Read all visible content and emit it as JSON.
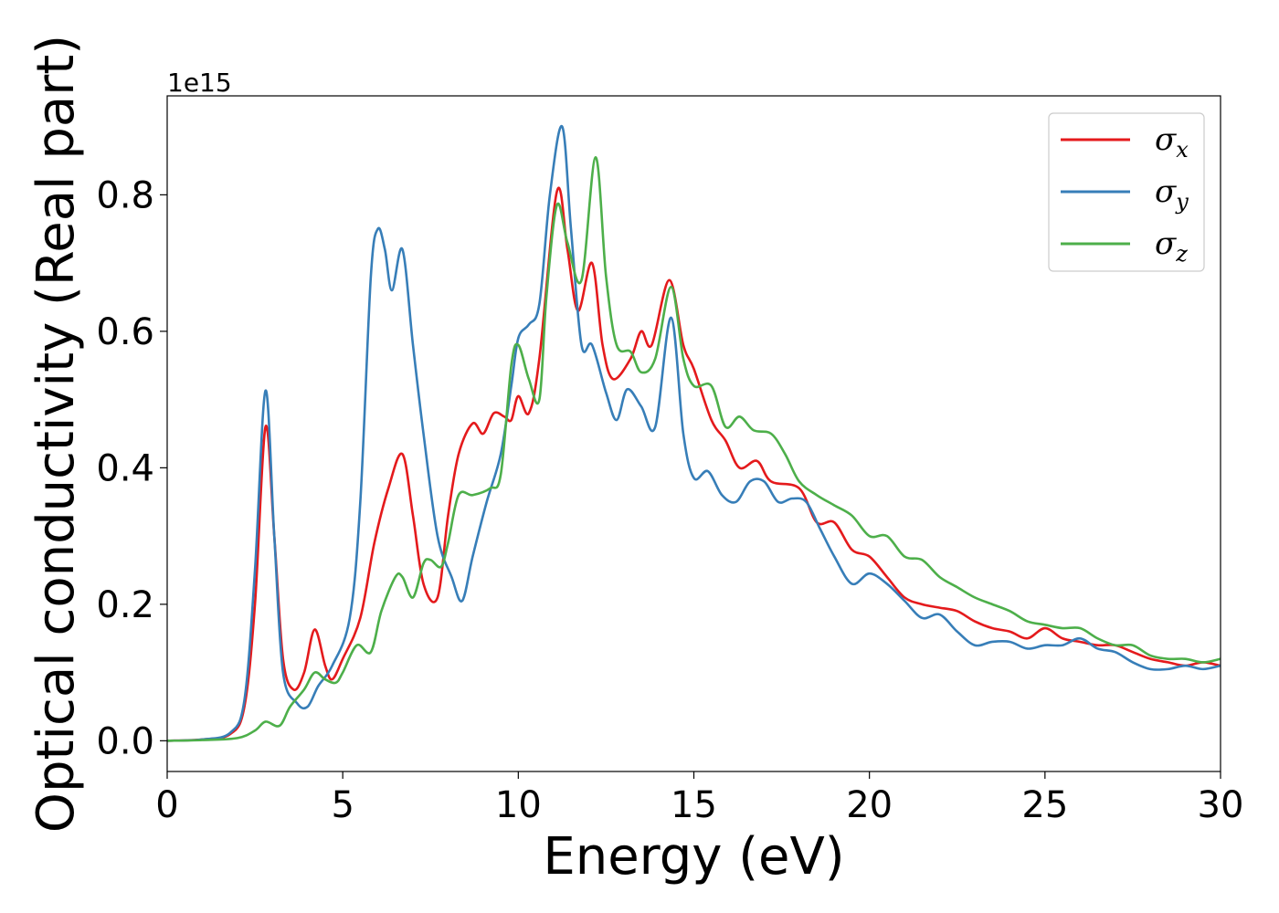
{
  "chart_data": {
    "type": "line",
    "title": "",
    "xlabel": "Energy (eV)",
    "ylabel": "Optical conductivity (Real part)",
    "y_offset_label": "1e15",
    "xlim": [
      0,
      30
    ],
    "ylim": [
      -0.045,
      0.945
    ],
    "xticks": [
      0,
      5,
      10,
      15,
      20,
      25,
      30
    ],
    "yticks": [
      0.0,
      0.2,
      0.4,
      0.6,
      0.8
    ],
    "xtick_labels": [
      "0",
      "5",
      "10",
      "15",
      "20",
      "25",
      "30"
    ],
    "ytick_labels": [
      "0.0",
      "0.2",
      "0.4",
      "0.6",
      "0.8"
    ],
    "grid": false,
    "legend": {
      "position": "top-right"
    },
    "series": [
      {
        "name": "σx",
        "symbol": "σ",
        "sub": "x",
        "color": "#e41a1c",
        "points": [
          [
            0,
            0
          ],
          [
            1,
            0.002
          ],
          [
            1.8,
            0.01
          ],
          [
            2.2,
            0.05
          ],
          [
            2.5,
            0.2
          ],
          [
            2.8,
            0.46
          ],
          [
            3.05,
            0.3
          ],
          [
            3.3,
            0.12
          ],
          [
            3.6,
            0.075
          ],
          [
            3.9,
            0.1
          ],
          [
            4.2,
            0.163
          ],
          [
            4.5,
            0.11
          ],
          [
            4.7,
            0.09
          ],
          [
            5.0,
            0.12
          ],
          [
            5.5,
            0.18
          ],
          [
            5.9,
            0.29
          ],
          [
            6.3,
            0.37
          ],
          [
            6.7,
            0.42
          ],
          [
            7.0,
            0.33
          ],
          [
            7.3,
            0.23
          ],
          [
            7.7,
            0.21
          ],
          [
            8.0,
            0.33
          ],
          [
            8.3,
            0.42
          ],
          [
            8.7,
            0.465
          ],
          [
            9.0,
            0.45
          ],
          [
            9.3,
            0.48
          ],
          [
            9.6,
            0.475
          ],
          [
            9.8,
            0.47
          ],
          [
            10.0,
            0.505
          ],
          [
            10.3,
            0.48
          ],
          [
            10.6,
            0.56
          ],
          [
            11.1,
            0.805
          ],
          [
            11.4,
            0.72
          ],
          [
            11.7,
            0.63
          ],
          [
            12.1,
            0.7
          ],
          [
            12.4,
            0.58
          ],
          [
            12.7,
            0.53
          ],
          [
            13.2,
            0.56
          ],
          [
            13.5,
            0.6
          ],
          [
            13.8,
            0.58
          ],
          [
            14.3,
            0.675
          ],
          [
            14.7,
            0.58
          ],
          [
            15.0,
            0.545
          ],
          [
            15.5,
            0.47
          ],
          [
            15.9,
            0.44
          ],
          [
            16.3,
            0.4
          ],
          [
            16.8,
            0.41
          ],
          [
            17.2,
            0.38
          ],
          [
            18.0,
            0.37
          ],
          [
            18.5,
            0.32
          ],
          [
            19.0,
            0.32
          ],
          [
            19.5,
            0.28
          ],
          [
            20.0,
            0.27
          ],
          [
            20.5,
            0.24
          ],
          [
            21.0,
            0.21
          ],
          [
            21.5,
            0.2
          ],
          [
            22.0,
            0.195
          ],
          [
            22.5,
            0.19
          ],
          [
            23.0,
            0.175
          ],
          [
            23.5,
            0.165
          ],
          [
            24.0,
            0.16
          ],
          [
            24.5,
            0.15
          ],
          [
            25.0,
            0.165
          ],
          [
            25.5,
            0.15
          ],
          [
            26.0,
            0.145
          ],
          [
            26.5,
            0.14
          ],
          [
            27.0,
            0.14
          ],
          [
            27.5,
            0.13
          ],
          [
            28.0,
            0.12
          ],
          [
            28.5,
            0.115
          ],
          [
            29.0,
            0.11
          ],
          [
            29.5,
            0.115
          ],
          [
            30.0,
            0.11
          ]
        ]
      },
      {
        "name": "σy",
        "symbol": "σ",
        "sub": "y",
        "color": "#377eb8",
        "points": [
          [
            0,
            0
          ],
          [
            1,
            0.002
          ],
          [
            1.8,
            0.012
          ],
          [
            2.2,
            0.06
          ],
          [
            2.5,
            0.25
          ],
          [
            2.8,
            0.513
          ],
          [
            3.05,
            0.3
          ],
          [
            3.3,
            0.1
          ],
          [
            3.7,
            0.055
          ],
          [
            4.0,
            0.05
          ],
          [
            4.3,
            0.08
          ],
          [
            4.7,
            0.11
          ],
          [
            5.2,
            0.18
          ],
          [
            5.5,
            0.35
          ],
          [
            5.8,
            0.68
          ],
          [
            6.0,
            0.75
          ],
          [
            6.2,
            0.72
          ],
          [
            6.4,
            0.66
          ],
          [
            6.7,
            0.72
          ],
          [
            7.0,
            0.58
          ],
          [
            7.3,
            0.45
          ],
          [
            7.7,
            0.3
          ],
          [
            8.1,
            0.24
          ],
          [
            8.4,
            0.205
          ],
          [
            8.7,
            0.27
          ],
          [
            9.1,
            0.35
          ],
          [
            9.5,
            0.42
          ],
          [
            9.8,
            0.52
          ],
          [
            10.0,
            0.59
          ],
          [
            10.3,
            0.61
          ],
          [
            10.6,
            0.64
          ],
          [
            10.9,
            0.8
          ],
          [
            11.25,
            0.9
          ],
          [
            11.5,
            0.75
          ],
          [
            11.8,
            0.58
          ],
          [
            12.1,
            0.58
          ],
          [
            12.5,
            0.51
          ],
          [
            12.8,
            0.47
          ],
          [
            13.1,
            0.515
          ],
          [
            13.5,
            0.49
          ],
          [
            13.9,
            0.46
          ],
          [
            14.35,
            0.62
          ],
          [
            14.7,
            0.45
          ],
          [
            15.0,
            0.385
          ],
          [
            15.4,
            0.395
          ],
          [
            15.8,
            0.36
          ],
          [
            16.2,
            0.35
          ],
          [
            16.6,
            0.38
          ],
          [
            17.0,
            0.38
          ],
          [
            17.4,
            0.35
          ],
          [
            17.8,
            0.355
          ],
          [
            18.2,
            0.35
          ],
          [
            18.6,
            0.31
          ],
          [
            19.0,
            0.27
          ],
          [
            19.5,
            0.23
          ],
          [
            20.0,
            0.245
          ],
          [
            20.5,
            0.23
          ],
          [
            21.0,
            0.205
          ],
          [
            21.5,
            0.18
          ],
          [
            22.0,
            0.185
          ],
          [
            22.5,
            0.16
          ],
          [
            23.0,
            0.14
          ],
          [
            23.5,
            0.145
          ],
          [
            24.0,
            0.145
          ],
          [
            24.5,
            0.135
          ],
          [
            25.0,
            0.14
          ],
          [
            25.5,
            0.14
          ],
          [
            26.0,
            0.15
          ],
          [
            26.5,
            0.135
          ],
          [
            27.0,
            0.13
          ],
          [
            27.5,
            0.115
          ],
          [
            28.0,
            0.105
          ],
          [
            28.5,
            0.105
          ],
          [
            29.0,
            0.11
          ],
          [
            29.5,
            0.105
          ],
          [
            30.0,
            0.11
          ]
        ]
      },
      {
        "name": "σz",
        "symbol": "σ",
        "sub": "z",
        "color": "#4daf4a",
        "points": [
          [
            0,
            0
          ],
          [
            1,
            0.001
          ],
          [
            2.0,
            0.004
          ],
          [
            2.5,
            0.015
          ],
          [
            2.8,
            0.028
          ],
          [
            3.2,
            0.022
          ],
          [
            3.5,
            0.05
          ],
          [
            3.9,
            0.075
          ],
          [
            4.2,
            0.1
          ],
          [
            4.5,
            0.09
          ],
          [
            4.8,
            0.085
          ],
          [
            5.0,
            0.1
          ],
          [
            5.4,
            0.14
          ],
          [
            5.8,
            0.13
          ],
          [
            6.1,
            0.19
          ],
          [
            6.5,
            0.24
          ],
          [
            6.7,
            0.24
          ],
          [
            7.0,
            0.21
          ],
          [
            7.3,
            0.26
          ],
          [
            7.5,
            0.265
          ],
          [
            7.8,
            0.255
          ],
          [
            8.0,
            0.29
          ],
          [
            8.3,
            0.36
          ],
          [
            8.7,
            0.36
          ],
          [
            9.2,
            0.37
          ],
          [
            9.5,
            0.39
          ],
          [
            9.8,
            0.55
          ],
          [
            10.0,
            0.58
          ],
          [
            10.3,
            0.53
          ],
          [
            10.6,
            0.5
          ],
          [
            10.8,
            0.65
          ],
          [
            11.1,
            0.785
          ],
          [
            11.4,
            0.73
          ],
          [
            11.8,
            0.675
          ],
          [
            12.2,
            0.855
          ],
          [
            12.5,
            0.68
          ],
          [
            12.8,
            0.58
          ],
          [
            13.2,
            0.57
          ],
          [
            13.5,
            0.54
          ],
          [
            13.9,
            0.56
          ],
          [
            14.35,
            0.665
          ],
          [
            14.7,
            0.56
          ],
          [
            15.0,
            0.52
          ],
          [
            15.5,
            0.52
          ],
          [
            15.9,
            0.46
          ],
          [
            16.3,
            0.475
          ],
          [
            16.7,
            0.455
          ],
          [
            17.2,
            0.45
          ],
          [
            17.6,
            0.42
          ],
          [
            18.0,
            0.38
          ],
          [
            18.5,
            0.36
          ],
          [
            19.0,
            0.345
          ],
          [
            19.5,
            0.33
          ],
          [
            20.0,
            0.3
          ],
          [
            20.5,
            0.3
          ],
          [
            21.0,
            0.27
          ],
          [
            21.5,
            0.265
          ],
          [
            22.0,
            0.24
          ],
          [
            22.5,
            0.225
          ],
          [
            23.0,
            0.21
          ],
          [
            23.5,
            0.2
          ],
          [
            24.0,
            0.19
          ],
          [
            24.5,
            0.175
          ],
          [
            25.0,
            0.17
          ],
          [
            25.5,
            0.165
          ],
          [
            26.0,
            0.165
          ],
          [
            26.5,
            0.15
          ],
          [
            27.0,
            0.14
          ],
          [
            27.5,
            0.14
          ],
          [
            28.0,
            0.125
          ],
          [
            28.5,
            0.12
          ],
          [
            29.0,
            0.12
          ],
          [
            29.5,
            0.115
          ],
          [
            30.0,
            0.12
          ]
        ]
      }
    ]
  }
}
